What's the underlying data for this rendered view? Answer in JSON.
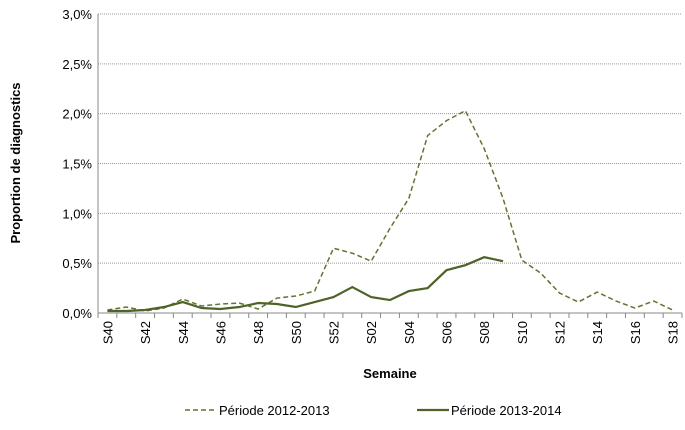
{
  "chart_data": {
    "type": "line",
    "x_label": "Semaine",
    "y_label": "Proportion de diagnostics",
    "categories": [
      "S40",
      null,
      "S42",
      null,
      "S44",
      null,
      "S46",
      null,
      "S48",
      null,
      "S50",
      null,
      "S52",
      null,
      "S02",
      null,
      "S04",
      null,
      "S06",
      null,
      "S08",
      null,
      "S10",
      null,
      "S12",
      null,
      "S14",
      null,
      "S16",
      null,
      "S18"
    ],
    "series": [
      {
        "name": "Période 2012-2013",
        "color": "#5f7530",
        "style": "dashed",
        "values": [
          0.03,
          0.06,
          0.02,
          0.05,
          0.14,
          0.07,
          0.09,
          0.1,
          0.04,
          0.15,
          0.17,
          0.22,
          0.65,
          0.6,
          0.52,
          0.85,
          1.15,
          1.78,
          1.93,
          2.03,
          1.65,
          1.15,
          0.53,
          0.4,
          0.2,
          0.11,
          0.21,
          0.12,
          0.05,
          0.12,
          0.03
        ]
      },
      {
        "name": "Période 2013-2014",
        "color": "#4f6228",
        "style": "solid",
        "values": [
          0.02,
          0.02,
          0.03,
          0.06,
          0.11,
          0.05,
          0.04,
          0.06,
          0.1,
          0.09,
          0.06,
          0.11,
          0.16,
          0.26,
          0.16,
          0.13,
          0.22,
          0.25,
          0.43,
          0.48,
          0.56,
          0.52,
          null,
          null,
          null,
          null,
          null,
          null,
          null,
          null,
          null
        ]
      }
    ],
    "ylim": [
      0,
      3
    ],
    "yticks": [
      {
        "value": 0,
        "label": "0,0%"
      },
      {
        "value": 0.5,
        "label": "0,5%"
      },
      {
        "value": 1,
        "label": "1,0%"
      },
      {
        "value": 1.5,
        "label": "1,5%"
      },
      {
        "value": 2,
        "label": "2,0%"
      },
      {
        "value": 2.5,
        "label": "2,5%"
      },
      {
        "value": 3,
        "label": "3,0%"
      }
    ],
    "grid": true,
    "legend": "bottom"
  }
}
